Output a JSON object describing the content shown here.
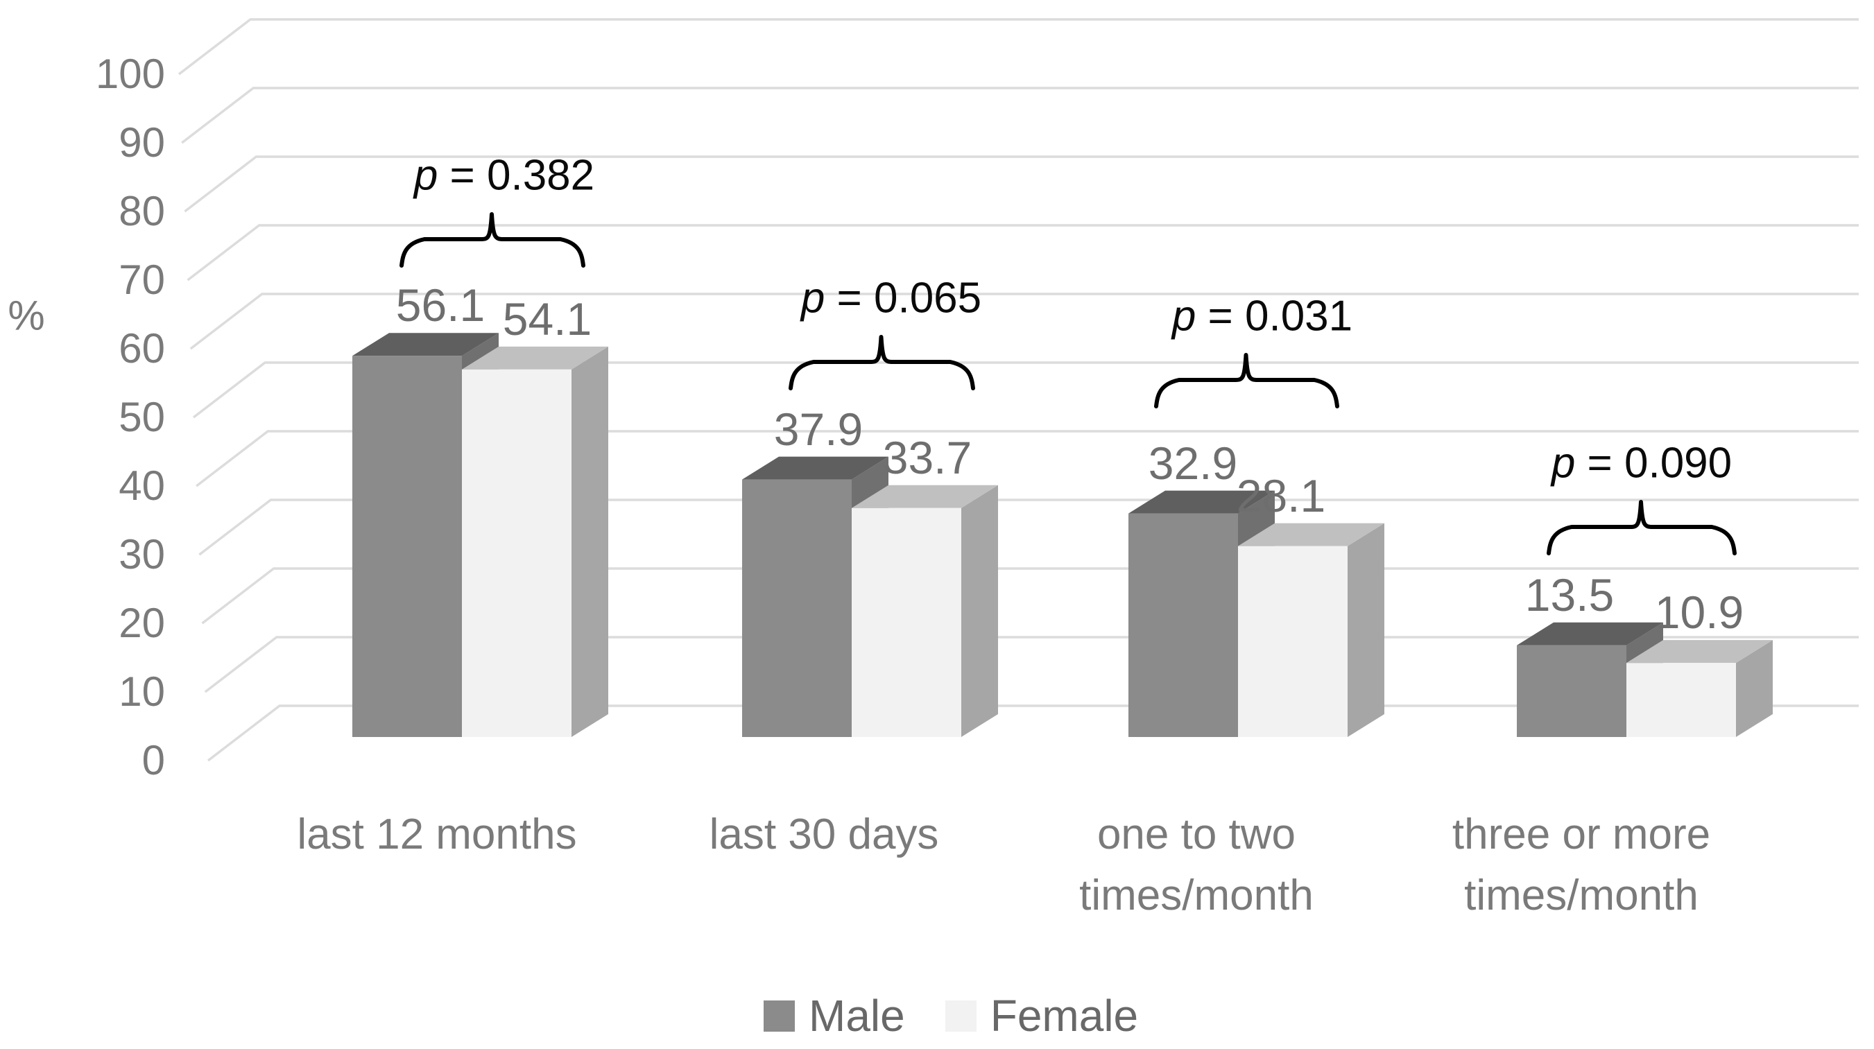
{
  "chart_data": {
    "type": "bar",
    "chart_style": "3d-clustered-column",
    "title": "",
    "xlabel": "",
    "ylabel": "%",
    "ylim": [
      0,
      100
    ],
    "yticks": [
      100,
      90,
      80,
      70,
      60,
      50,
      40,
      30,
      20,
      10,
      0
    ],
    "grid": true,
    "legend_position": "bottom",
    "background": "#ffffff",
    "gridline_color": "#dcdcdc",
    "categories": [
      "last 12 months",
      "last 30 days",
      "one to two times/month",
      "three or more times/month"
    ],
    "category_lines": [
      [
        "last 12 months"
      ],
      [
        "last 30 days"
      ],
      [
        "one to two",
        "times/month"
      ],
      [
        "three or more",
        "times/month"
      ]
    ],
    "series": [
      {
        "name": "Male",
        "values": [
          56.1,
          37.9,
          32.9,
          13.5
        ],
        "front_color": "#8b8b8b",
        "top_color": "#5f5f5f",
        "side_color": "#707070"
      },
      {
        "name": "Female",
        "values": [
          54.1,
          33.7,
          28.1,
          10.9
        ],
        "front_color": "#f2f2f2",
        "top_color": "#c0c0c0",
        "side_color": "#a6a6a6"
      }
    ],
    "value_labels": [
      [
        "56.1",
        "54.1"
      ],
      [
        "37.9",
        "33.7"
      ],
      [
        "32.9",
        "28.1"
      ],
      [
        "13.5",
        "10.9"
      ]
    ],
    "p_values": [
      "p = 0.382",
      "p = 0.065",
      "p = 0.031",
      "p = 0.090"
    ],
    "annotation_color": "#000000",
    "text_colors": {
      "axis": "#7a7a7a",
      "value": "#6e6e6e",
      "legend": "#686868",
      "p": "#0a0a0a"
    }
  }
}
